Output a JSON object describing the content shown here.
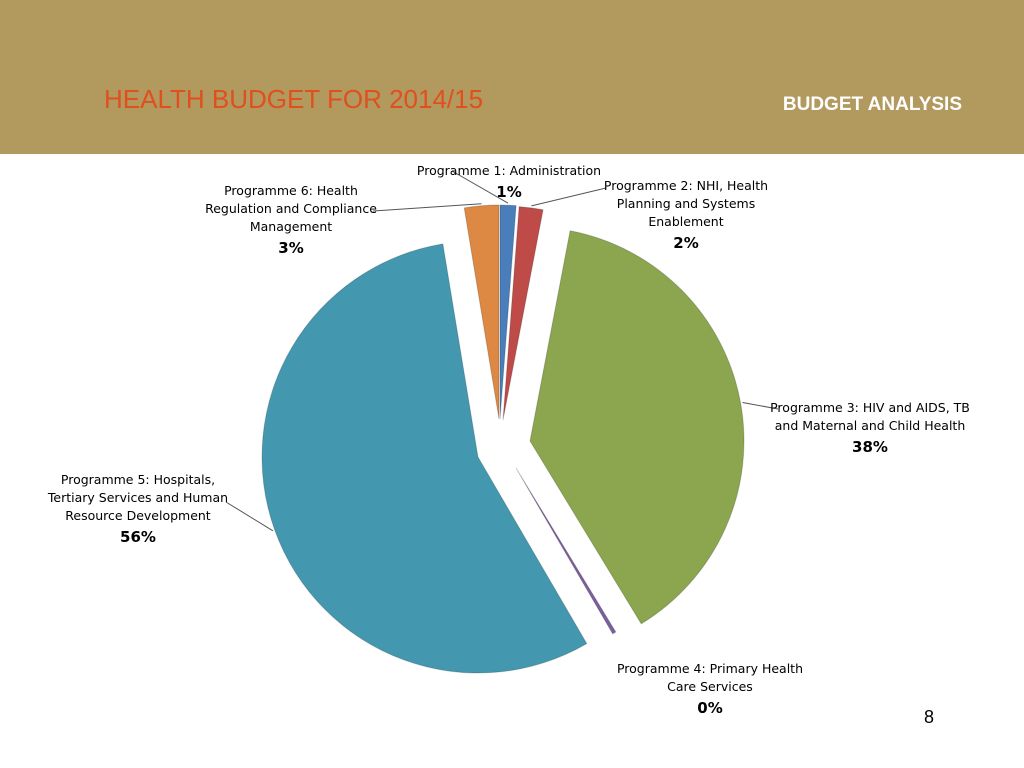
{
  "slide": {
    "title": "HEALTH BUDGET FOR 2014/15",
    "section": "BUDGET ANALYSIS",
    "page_number": "8"
  },
  "colors": {
    "header_band": "#b2995d",
    "title": "#e0501f",
    "section_label": "#ffffff"
  },
  "chart_data": {
    "type": "pie",
    "title": "",
    "start": "12 o'clock, clockwise",
    "exploded": true,
    "slices": [
      {
        "label_lines": [
          "Programme 1: Administration"
        ],
        "percent_label": "1%",
        "value": 1.2,
        "color": "#4a7ebb"
      },
      {
        "label_lines": [
          "Programme 2: NHI, Health",
          "Planning and Systems",
          "Enablement"
        ],
        "percent_label": "2%",
        "value": 1.8,
        "color": "#be4b48"
      },
      {
        "label_lines": [
          "Programme 3: HIV and AIDS, TB",
          "and Maternal and Child Health"
        ],
        "percent_label": "38%",
        "value": 38.3,
        "color": "#8ba64e"
      },
      {
        "label_lines": [
          "Programme 4: Primary Health",
          "Care Services"
        ],
        "percent_label": "0%",
        "value": 0.3,
        "color": "#7d5fa0"
      },
      {
        "label_lines": [
          "Programme 5: Hospitals,",
          "Tertiary Services and Human",
          "Resource Development"
        ],
        "percent_label": "56%",
        "value": 55.8,
        "color": "#4398b0"
      },
      {
        "label_lines": [
          "Programme 6:  Health",
          "Regulation and Compliance",
          "Management"
        ],
        "percent_label": "3%",
        "value": 2.6,
        "color": "#dd8843"
      }
    ]
  }
}
